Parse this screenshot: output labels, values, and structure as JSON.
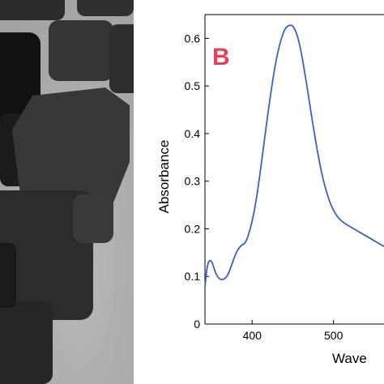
{
  "chart_data": {
    "type": "line",
    "panel_label": "B",
    "ylabel": "Absorbance",
    "xlabel": "Wave",
    "x_ticks": [
      400,
      500
    ],
    "y_ticks": [
      "0",
      "0.1",
      "0.2",
      "0.3",
      "0.4",
      "0.5",
      "0.6"
    ],
    "xlim": [
      342,
      568
    ],
    "ylim": [
      0,
      0.65
    ],
    "grid": false,
    "series": [
      {
        "color": "#3a5fc8",
        "x": [
          342,
          343,
          345,
          348,
          351,
          354,
          357,
          360,
          363,
          366,
          369,
          372,
          375,
          378,
          381,
          384,
          387,
          390,
          393,
          396,
          400,
          405,
          410,
          415,
          420,
          425,
          430,
          435,
          440,
          445,
          450,
          455,
          460,
          465,
          470,
          475,
          480,
          485,
          490,
          495,
          500,
          505,
          510,
          515,
          520,
          525,
          530,
          535,
          540,
          545,
          550,
          555,
          560,
          565,
          568
        ],
        "y": [
          0.078,
          0.095,
          0.125,
          0.135,
          0.13,
          0.112,
          0.1,
          0.095,
          0.093,
          0.095,
          0.1,
          0.11,
          0.125,
          0.14,
          0.152,
          0.16,
          0.166,
          0.168,
          0.175,
          0.19,
          0.215,
          0.26,
          0.32,
          0.385,
          0.45,
          0.51,
          0.56,
          0.595,
          0.62,
          0.628,
          0.627,
          0.61,
          0.575,
          0.525,
          0.47,
          0.415,
          0.365,
          0.32,
          0.285,
          0.258,
          0.238,
          0.225,
          0.216,
          0.21,
          0.205,
          0.2,
          0.195,
          0.19,
          0.185,
          0.18,
          0.175,
          0.17,
          0.165,
          0.16,
          0.157
        ]
      }
    ]
  }
}
